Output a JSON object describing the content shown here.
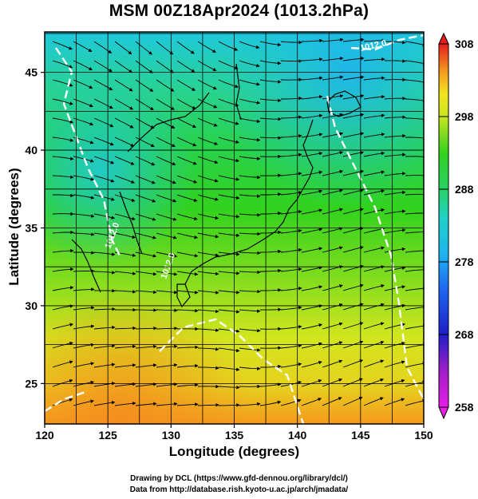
{
  "title": "MSM 00Z18Apr2024 (1013.2hPa)",
  "x_axis_label": "Longitude (degrees)",
  "y_axis_label": "Latitude  (degrees)",
  "x_ticks": [
    "120",
    "125",
    "130",
    "135",
    "140",
    "145",
    "150"
  ],
  "y_ticks": [
    "25",
    "30",
    "35",
    "40",
    "45"
  ],
  "colorbar_ticks": [
    "308",
    "298",
    "288",
    "278",
    "268",
    "258"
  ],
  "contour_labels": [
    "1012.0",
    "1012.0",
    "1012.0"
  ],
  "credit_line_1": "Drawing by DCL (https://www.gfd-dennou.org/library/dcl/)",
  "credit_line_2": "Data from http://database.rish.kyoto-u.ac.jp/arch/jmadata/",
  "chart_data": {
    "type": "heatmap",
    "title": "MSM 00Z18Apr2024 (1013.2hPa)",
    "xlabel": "Longitude (degrees)",
    "ylabel": "Latitude  (degrees)",
    "xlim": [
      120,
      150
    ],
    "ylim": [
      22.4,
      47.6
    ],
    "x_ticks": [
      120,
      125,
      130,
      135,
      140,
      145,
      150
    ],
    "y_ticks": [
      25,
      30,
      35,
      40,
      45
    ],
    "colorbar": {
      "min": 258,
      "max": 308,
      "ticks": [
        308,
        298,
        288,
        278,
        268,
        258
      ]
    },
    "grid": true,
    "overlays": [
      "wind streamlines",
      "coastlines",
      "white isobar contours"
    ]
  },
  "colors": {
    "warm": "#ff9a1e",
    "yellow": "#e6ee1a",
    "green": "#32d21e",
    "cyan": "#1ed2c8",
    "blue": "#1e64f0",
    "magenta": "#e61ee6"
  }
}
